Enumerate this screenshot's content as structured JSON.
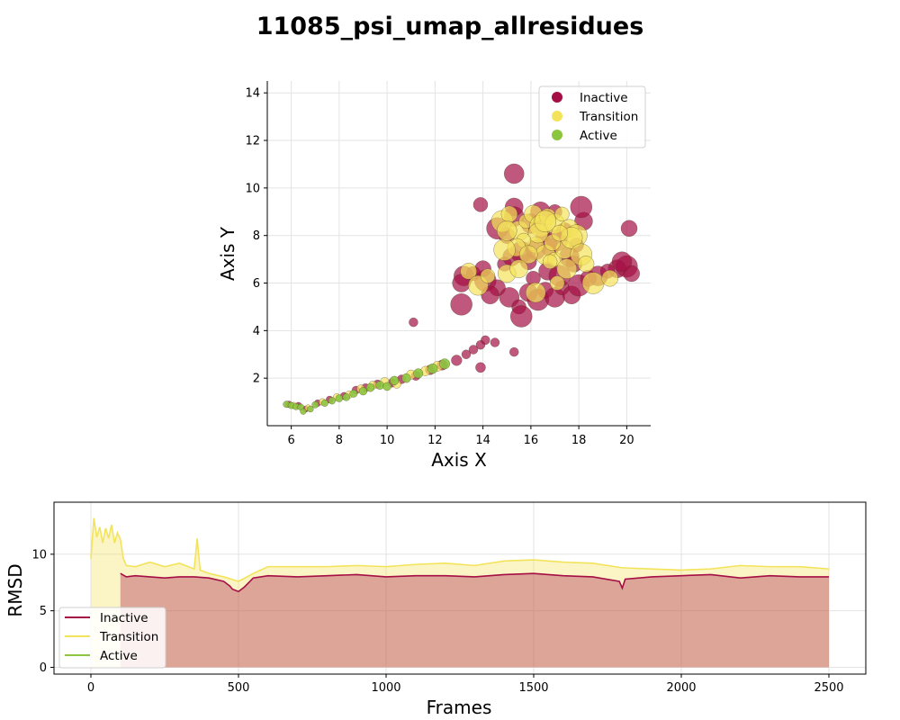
{
  "figure_title": "11085_psi_umap_allresidues",
  "colors": {
    "inactive": "#a50f45",
    "transition": "#f3e35a",
    "active": "#8cc63e"
  },
  "chart_data": [
    {
      "type": "scatter",
      "xlabel": "Axis X",
      "ylabel": "Axis Y",
      "xlim": [
        5,
        21
      ],
      "ylim": [
        0,
        14.5
      ],
      "xticks": [
        "6",
        "8",
        "10",
        "12",
        "14",
        "16",
        "18",
        "20"
      ],
      "yticks": [
        "2",
        "4",
        "6",
        "8",
        "10",
        "12",
        "14"
      ],
      "grid": true,
      "legend": {
        "position": "top-right",
        "entries": [
          "Inactive",
          "Transition",
          "Active"
        ]
      },
      "series": [
        {
          "name": "Inactive",
          "points": [
            [
              5.9,
              0.9
            ],
            [
              6.3,
              0.85
            ],
            [
              6.6,
              0.7
            ],
            [
              7.1,
              0.95
            ],
            [
              7.6,
              1.1
            ],
            [
              8.2,
              1.25
            ],
            [
              8.7,
              1.5
            ],
            [
              9.1,
              1.6
            ],
            [
              9.6,
              1.75
            ],
            [
              10.2,
              1.8
            ],
            [
              10.6,
              1.95
            ],
            [
              11.2,
              2.1
            ],
            [
              11.8,
              2.35
            ],
            [
              12.3,
              2.55
            ],
            [
              12.9,
              2.75
            ],
            [
              13.3,
              3.0
            ],
            [
              13.6,
              3.2
            ],
            [
              13.9,
              3.4
            ],
            [
              14.1,
              3.6
            ],
            [
              14.5,
              3.5
            ],
            [
              11.1,
              4.35
            ],
            [
              13.9,
              2.45
            ],
            [
              13.1,
              5.1
            ],
            [
              15.3,
              3.1
            ],
            [
              13.2,
              6.3
            ],
            [
              13.6,
              6.4
            ],
            [
              13.1,
              6.0
            ],
            [
              14.1,
              6.1
            ],
            [
              14.6,
              5.8
            ],
            [
              15.1,
              5.4
            ],
            [
              15.5,
              5.0
            ],
            [
              15.9,
              5.6
            ],
            [
              16.3,
              5.3
            ],
            [
              16.6,
              5.7
            ],
            [
              17.0,
              5.4
            ],
            [
              17.3,
              5.8
            ],
            [
              17.7,
              5.5
            ],
            [
              18.0,
              5.9
            ],
            [
              18.4,
              6.2
            ],
            [
              18.8,
              6.3
            ],
            [
              19.2,
              6.5
            ],
            [
              19.6,
              6.6
            ],
            [
              20.0,
              6.7
            ],
            [
              20.2,
              6.4
            ],
            [
              19.8,
              6.9
            ],
            [
              14.9,
              6.8
            ],
            [
              15.2,
              7.1
            ],
            [
              15.6,
              7.3
            ],
            [
              15.9,
              6.9
            ],
            [
              16.2,
              7.4
            ],
            [
              16.5,
              8.0
            ],
            [
              16.8,
              7.5
            ],
            [
              17.1,
              7.8
            ],
            [
              17.4,
              8.2
            ],
            [
              17.6,
              7.1
            ],
            [
              17.9,
              7.6
            ],
            [
              18.2,
              8.6
            ],
            [
              14.6,
              8.3
            ],
            [
              15.0,
              8.0
            ],
            [
              15.3,
              8.8
            ],
            [
              13.9,
              9.3
            ],
            [
              15.3,
              9.2
            ],
            [
              18.1,
              9.2
            ],
            [
              20.1,
              8.3
            ],
            [
              15.3,
              10.6
            ],
            [
              16.1,
              6.2
            ],
            [
              16.7,
              6.5
            ],
            [
              17.2,
              6.3
            ],
            [
              17.8,
              6.8
            ],
            [
              16.0,
              8.5
            ],
            [
              17.0,
              9.0
            ],
            [
              14.3,
              5.5
            ],
            [
              15.6,
              4.6
            ],
            [
              14.0,
              6.6
            ],
            [
              16.4,
              9.0
            ]
          ]
        },
        {
          "name": "Transition",
          "points": [
            [
              6.1,
              0.85
            ],
            [
              6.7,
              0.75
            ],
            [
              7.3,
              1.0
            ],
            [
              7.9,
              1.2
            ],
            [
              8.4,
              1.3
            ],
            [
              8.9,
              1.55
            ],
            [
              9.4,
              1.7
            ],
            [
              9.9,
              1.85
            ],
            [
              10.4,
              1.75
            ],
            [
              11.0,
              2.15
            ],
            [
              11.6,
              2.3
            ],
            [
              12.1,
              2.5
            ],
            [
              14.8,
              8.6
            ],
            [
              15.1,
              8.9
            ],
            [
              15.5,
              8.2
            ],
            [
              15.8,
              8.6
            ],
            [
              16.1,
              8.9
            ],
            [
              16.4,
              8.4
            ],
            [
              16.7,
              8.8
            ],
            [
              17.0,
              8.5
            ],
            [
              17.3,
              8.9
            ],
            [
              17.6,
              8.3
            ],
            [
              17.9,
              8.0
            ],
            [
              16.2,
              7.6
            ],
            [
              16.6,
              7.2
            ],
            [
              17.0,
              7.0
            ],
            [
              17.4,
              7.4
            ],
            [
              17.7,
              7.9
            ],
            [
              16.9,
              7.7
            ],
            [
              16.3,
              8.1
            ],
            [
              15.7,
              7.8
            ],
            [
              15.4,
              7.5
            ],
            [
              18.1,
              7.2
            ],
            [
              18.3,
              6.8
            ],
            [
              17.5,
              6.6
            ],
            [
              16.8,
              6.9
            ],
            [
              15.9,
              7.2
            ],
            [
              14.9,
              7.4
            ],
            [
              13.4,
              6.5
            ],
            [
              13.8,
              5.9
            ],
            [
              14.2,
              6.3
            ],
            [
              15.0,
              6.4
            ],
            [
              18.6,
              6.0
            ],
            [
              19.3,
              6.2
            ],
            [
              16.2,
              5.6
            ],
            [
              17.1,
              6.0
            ],
            [
              15.5,
              6.6
            ],
            [
              16.6,
              8.6
            ],
            [
              17.2,
              8.1
            ],
            [
              15.0,
              8.2
            ]
          ]
        },
        {
          "name": "Active",
          "points": [
            [
              5.8,
              0.9
            ],
            [
              6.0,
              0.85
            ],
            [
              6.2,
              0.8
            ],
            [
              6.4,
              0.78
            ],
            [
              6.5,
              0.6
            ],
            [
              6.8,
              0.7
            ],
            [
              7.0,
              0.88
            ],
            [
              7.4,
              0.95
            ],
            [
              7.7,
              1.05
            ],
            [
              8.0,
              1.15
            ],
            [
              8.3,
              1.2
            ],
            [
              8.6,
              1.35
            ],
            [
              9.0,
              1.45
            ],
            [
              9.3,
              1.6
            ],
            [
              9.7,
              1.7
            ],
            [
              10.0,
              1.65
            ],
            [
              10.3,
              1.9
            ],
            [
              10.8,
              2.0
            ],
            [
              11.3,
              2.2
            ],
            [
              11.9,
              2.4
            ],
            [
              12.4,
              2.6
            ]
          ]
        }
      ]
    },
    {
      "type": "line",
      "xlabel": "Frames",
      "ylabel": "RMSD",
      "xlim": [
        -125,
        2625
      ],
      "ylim": [
        -0.6,
        14.6
      ],
      "xticks": [
        "0",
        "500",
        "1000",
        "1500",
        "2000",
        "2500"
      ],
      "yticks": [
        "0",
        "5",
        "10"
      ],
      "grid": true,
      "legend": {
        "position": "bottom-left",
        "entries": [
          "Inactive",
          "Transition",
          "Active"
        ]
      },
      "series": [
        {
          "name": "Transition",
          "x": [
            0,
            10,
            20,
            30,
            40,
            50,
            60,
            70,
            80,
            90,
            100,
            110,
            120,
            150,
            200,
            250,
            300,
            350,
            360,
            370,
            400,
            450,
            500,
            550,
            600,
            700,
            800,
            900,
            1000,
            1100,
            1200,
            1300,
            1400,
            1500,
            1600,
            1700,
            1800,
            1900,
            2000,
            2100,
            2200,
            2300,
            2400,
            2500
          ],
          "values": [
            9.6,
            13.2,
            11.5,
            12.4,
            11.0,
            12.3,
            11.4,
            12.6,
            11.0,
            11.9,
            11.3,
            9.6,
            9.0,
            8.9,
            9.3,
            8.9,
            9.2,
            8.7,
            11.4,
            8.6,
            8.3,
            8.0,
            7.6,
            8.3,
            8.9,
            8.9,
            8.9,
            9.0,
            8.9,
            9.1,
            9.2,
            9.0,
            9.4,
            9.5,
            9.3,
            9.2,
            8.8,
            8.7,
            8.6,
            8.7,
            9.0,
            8.9,
            8.9,
            8.7
          ]
        },
        {
          "name": "Inactive",
          "x": [
            100,
            120,
            150,
            200,
            250,
            300,
            350,
            400,
            450,
            470,
            480,
            500,
            520,
            550,
            600,
            700,
            800,
            900,
            1000,
            1100,
            1200,
            1300,
            1400,
            1500,
            1600,
            1700,
            1790,
            1800,
            1810,
            1900,
            2000,
            2100,
            2200,
            2300,
            2400,
            2500
          ],
          "values": [
            8.3,
            8.0,
            8.1,
            8.0,
            7.9,
            8.0,
            8.0,
            7.9,
            7.6,
            7.2,
            6.9,
            6.7,
            7.1,
            7.9,
            8.1,
            8.0,
            8.1,
            8.2,
            8.0,
            8.1,
            8.1,
            8.0,
            8.2,
            8.3,
            8.1,
            8.0,
            7.6,
            7.0,
            7.8,
            8.0,
            8.1,
            8.2,
            7.9,
            8.1,
            8.0,
            8.0
          ]
        },
        {
          "name": "Active",
          "x": [],
          "values": []
        }
      ]
    }
  ]
}
